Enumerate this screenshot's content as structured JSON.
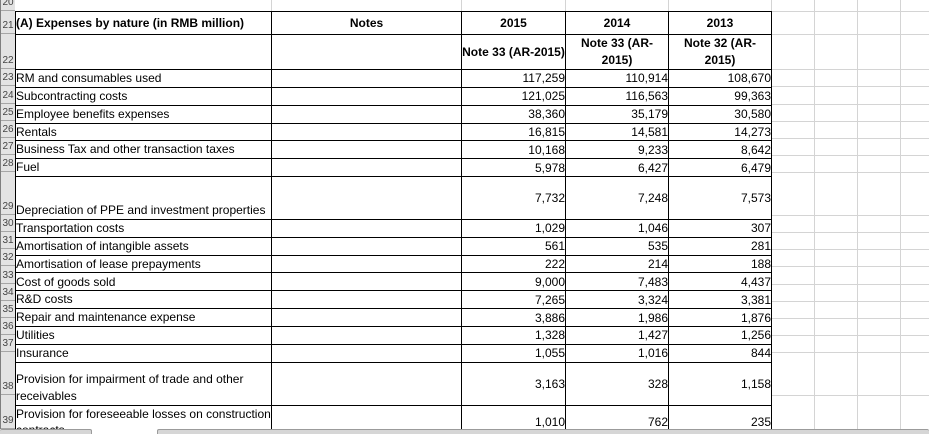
{
  "sheet": {
    "row_numbers": [
      "20",
      "21",
      "22",
      "23",
      "24",
      "25",
      "26",
      "27",
      "28",
      "29",
      "30",
      "31",
      "32",
      "33",
      "34",
      "35",
      "36",
      "37",
      "38",
      "39"
    ]
  },
  "table": {
    "title": "(A) Expenses by nature (in RMB million)",
    "notes_header": "Notes",
    "year_headers": [
      "2015",
      "2014",
      "2013"
    ],
    "note_refs": [
      "Note 33 (AR-2015)",
      "Note 33 (AR-2015)",
      "Note 32 (AR-2015)"
    ],
    "rows": [
      {
        "label": "RM and consumables used",
        "notes": "",
        "values": [
          "117,259",
          "110,914",
          "108,670"
        ]
      },
      {
        "label": "Subcontracting costs",
        "notes": "",
        "values": [
          "121,025",
          "116,563",
          "99,363"
        ]
      },
      {
        "label": "Employee benefits expenses",
        "notes": "",
        "values": [
          "38,360",
          "35,179",
          "30,580"
        ]
      },
      {
        "label": "Rentals",
        "notes": "",
        "values": [
          "16,815",
          "14,581",
          "14,273"
        ]
      },
      {
        "label": "Business Tax and other transaction taxes",
        "notes": "",
        "values": [
          "10,168",
          "9,233",
          "8,642"
        ]
      },
      {
        "label": "Fuel",
        "notes": "",
        "values": [
          "5,978",
          "6,427",
          "6,479"
        ]
      },
      {
        "label": "Depreciation of PPE and investment properties",
        "notes": "",
        "values": [
          "7,732",
          "7,248",
          "7,573"
        ]
      },
      {
        "label": "Transportation costs",
        "notes": "",
        "values": [
          "1,029",
          "1,046",
          "307"
        ]
      },
      {
        "label": "Amortisation of intangible assets",
        "notes": "",
        "values": [
          "561",
          "535",
          "281"
        ]
      },
      {
        "label": "Amortisation of lease prepayments",
        "notes": "",
        "values": [
          "222",
          "214",
          "188"
        ]
      },
      {
        "label": "Cost of goods sold",
        "notes": "",
        "values": [
          "9,000",
          "7,483",
          "4,437"
        ]
      },
      {
        "label": "R&D costs",
        "notes": "",
        "values": [
          "7,265",
          "3,324",
          "3,381"
        ]
      },
      {
        "label": "Repair and maintenance expense",
        "notes": "",
        "values": [
          "3,886",
          "1,986",
          "1,876"
        ]
      },
      {
        "label": "Utilities",
        "notes": "",
        "values": [
          "1,328",
          "1,427",
          "1,256"
        ]
      },
      {
        "label": "Insurance",
        "notes": "",
        "values": [
          "1,055",
          "1,016",
          "844"
        ]
      },
      {
        "label": "Provision for impairment of trade and other receivables",
        "notes": "",
        "values": [
          "3,163",
          "328",
          "1,158"
        ]
      },
      {
        "label": "Provision for foreseeable losses on construction contracts",
        "notes": "",
        "values": [
          "1,010",
          "762",
          "235"
        ]
      }
    ]
  },
  "colors": {
    "grid_line": "#d4d4d4",
    "table_border": "#000000",
    "row_header_bg": "#e3e3e3",
    "row_header_text": "#444444",
    "scrollbar_fill": "#d6d6d6"
  }
}
